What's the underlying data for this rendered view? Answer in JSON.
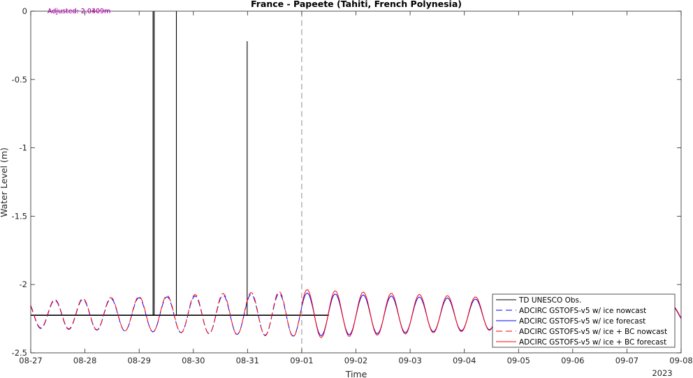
{
  "chart_data": {
    "type": "line",
    "title": "France - Papeete (Tahiti, French Polynesia)",
    "xlabel": "Time",
    "ylabel": "Water Level (m)",
    "year_label": "2023",
    "x_tick_labels": [
      "08-27",
      "08-28",
      "08-29",
      "08-30",
      "08-31",
      "09-01",
      "09-02",
      "09-03",
      "09-04",
      "09-05",
      "09-06",
      "09-07",
      "09-08"
    ],
    "x_range": [
      "2023-08-27 00:00",
      "2023-09-08 00:00"
    ],
    "ylim": [
      -2.5,
      0
    ],
    "y_ticks": [
      0,
      -0.5,
      -1,
      -1.5,
      -2,
      -2.5
    ],
    "y_tick_labels": [
      "0",
      "-0.5",
      "-1",
      "-1.5",
      "-2",
      "-2.5"
    ],
    "nowcast_forecast_divider": "2023-09-01 00:00",
    "grid": false,
    "legend_position": "bottom-right",
    "annotations": [
      {
        "text": "Adjusted: 2.0409m",
        "color": "#cc0066"
      },
      {
        "text": "Adjusted: 2.0309m",
        "color": "#9900cc"
      }
    ],
    "series": [
      {
        "name": "TD UNESCO Obs.",
        "color": "#000000",
        "style": "solid",
        "baseline": -2.225,
        "x_range": [
          "2023-08-27 00:00",
          "2023-09-01 12:00"
        ],
        "spikes": [
          {
            "time": "2023-08-29 06:10",
            "top": 0
          },
          {
            "time": "2023-08-29 06:40",
            "top": 0
          },
          {
            "time": "2023-08-29 16:30",
            "top": 0
          },
          {
            "time": "2023-08-30 23:50",
            "top": -0.22
          }
        ]
      },
      {
        "name": "ADCIRC GSTOFS-v5 w/ ice nowcast",
        "color": "#0000ff",
        "style": "dashed",
        "x_range": [
          "2023-08-27 00:00",
          "2023-09-01 00:00"
        ],
        "mean": -2.22,
        "amplitude": [
          0.1,
          0.16
        ],
        "period_hours": 12.42
      },
      {
        "name": "ADCIRC GSTOFS-v5 w/ ice forecast",
        "color": "#0000ff",
        "style": "solid",
        "x_range": [
          "2023-09-01 00:00",
          "2023-09-08 00:00"
        ],
        "mean": -2.22,
        "amplitude": [
          0.16,
          0.06
        ],
        "period_hours": 12.42
      },
      {
        "name": "ADCIRC GSTOFS-v5 w/ ice + BC nowcast",
        "color": "#ff0000",
        "style": "dashed",
        "x_range": [
          "2023-08-27 00:00",
          "2023-09-01 00:00"
        ],
        "mean": -2.215,
        "amplitude": [
          0.1,
          0.17
        ],
        "period_hours": 12.42
      },
      {
        "name": "ADCIRC GSTOFS-v5 w/ ice + BC forecast",
        "color": "#ff0000",
        "style": "solid",
        "x_range": [
          "2023-09-01 00:00",
          "2023-09-08 00:00"
        ],
        "mean": -2.215,
        "amplitude": [
          0.18,
          0.06
        ],
        "period_hours": 12.42
      }
    ]
  }
}
